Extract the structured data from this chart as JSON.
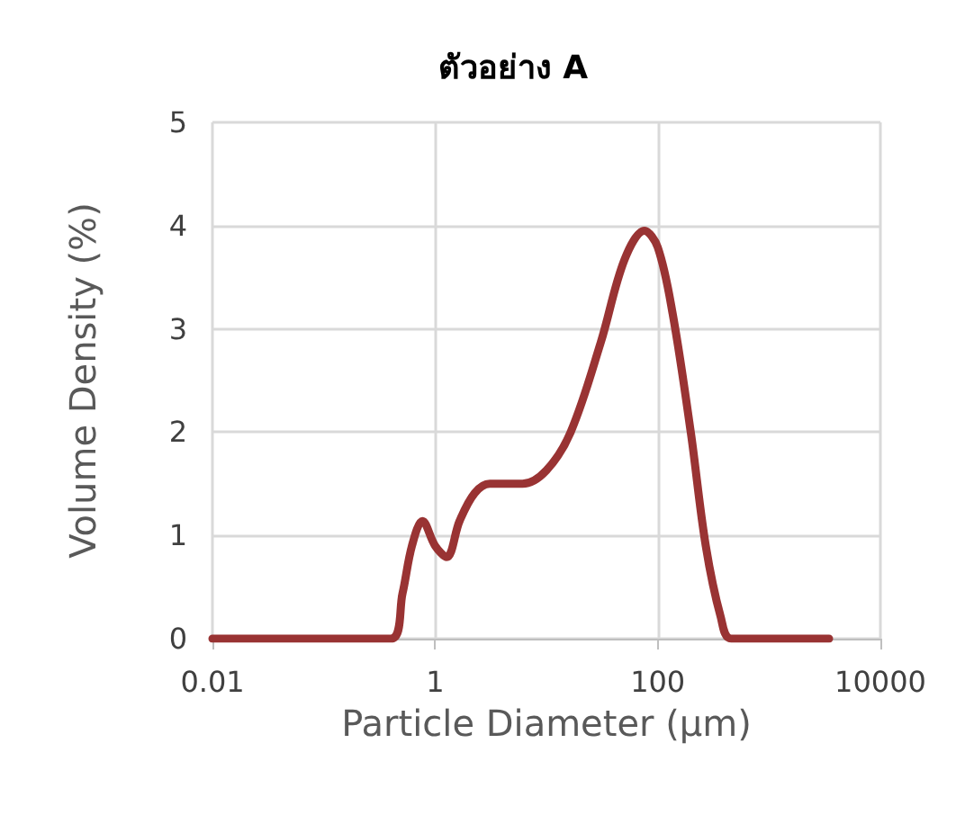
{
  "chart_data": {
    "type": "line",
    "title": "ตัวอย่าง A",
    "xlabel": "Particle Diameter (µm)",
    "ylabel": "Volume Density (%)",
    "log": "x",
    "xlim": [
      0.01,
      10000
    ],
    "xticks": [
      0.01,
      1,
      100,
      10000
    ],
    "ylim": [
      0,
      5
    ],
    "yticks": [
      0,
      1,
      2,
      3,
      4,
      5
    ],
    "grid": true,
    "marker": "none",
    "line_style": "solid",
    "series": [
      {
        "color": "#993333",
        "x": [
          0.01,
          0.4,
          0.51,
          0.62,
          0.77,
          1.0,
          1.27,
          1.66,
          2.27,
          3.1,
          6.1,
          10,
          16.5,
          30.8,
          50.3,
          75.9,
          100,
          136,
          198,
          270,
          368,
          457,
          3460
        ],
        "values": [
          0,
          0,
          0.44,
          0.9,
          1.14,
          0.9,
          0.79,
          1.14,
          1.41,
          1.5,
          1.5,
          1.63,
          2.0,
          2.87,
          3.67,
          3.95,
          3.79,
          3.15,
          2.0,
          0.9,
          0.21,
          0,
          0
        ]
      }
    ]
  }
}
